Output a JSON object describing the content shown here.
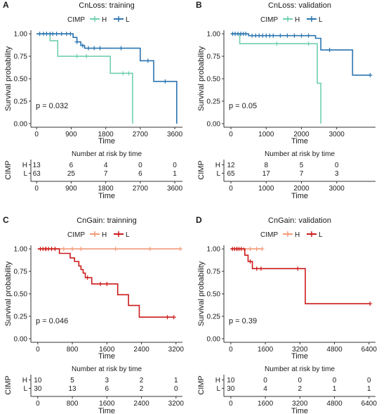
{
  "panels": [
    {
      "letter": "A",
      "title": "CnLoss: training",
      "legend_title": "CIMP",
      "p_value": "p = 0.032",
      "xlabel": "Time",
      "ylabel": "Survival probability",
      "risk_title": "Number at risk by time",
      "risk_ylabel": "CIMP",
      "xlim": [
        -150,
        3800
      ],
      "x_ticks": [
        0,
        900,
        1800,
        2700,
        3600
      ],
      "y_ticks": [
        0.0,
        0.25,
        0.5,
        0.75,
        1.0
      ],
      "series": [
        {
          "name": "H",
          "color": "#6fcfae",
          "steps": [
            [
              0,
              1.0
            ],
            [
              350,
              0.923
            ],
            [
              550,
              0.75
            ],
            [
              1500,
              0.75
            ],
            [
              1920,
              0.56
            ],
            [
              2500,
              0.0
            ]
          ],
          "censor": [
            [
              1050,
              0.75
            ],
            [
              1300,
              0.75
            ],
            [
              2250,
              0.56
            ],
            [
              2400,
              0.56
            ]
          ]
        },
        {
          "name": "L",
          "color": "#2a74b0",
          "steps": [
            [
              0,
              1.0
            ],
            [
              950,
              0.96
            ],
            [
              1050,
              0.91
            ],
            [
              1150,
              0.87
            ],
            [
              1250,
              0.84
            ],
            [
              2700,
              0.7
            ],
            [
              3050,
              0.47
            ],
            [
              3650,
              0.0
            ]
          ],
          "censor": [
            [
              80,
              1.0
            ],
            [
              180,
              1.0
            ],
            [
              260,
              1.0
            ],
            [
              350,
              1.0
            ],
            [
              420,
              1.0
            ],
            [
              520,
              1.0
            ],
            [
              650,
              1.0
            ],
            [
              780,
              1.0
            ],
            [
              880,
              1.0
            ],
            [
              1050,
              0.91
            ],
            [
              1200,
              0.87
            ],
            [
              1350,
              0.84
            ],
            [
              1500,
              0.84
            ],
            [
              1650,
              0.84
            ],
            [
              2200,
              0.84
            ],
            [
              2900,
              0.7
            ],
            [
              3350,
              0.47
            ]
          ]
        }
      ],
      "risk": {
        "times": [
          0,
          900,
          1800,
          2700,
          3600
        ],
        "rows": [
          {
            "group": "H",
            "color": "#6fcfae",
            "values": [
              "13",
              "6",
              "4",
              "0",
              "0"
            ]
          },
          {
            "group": "L",
            "color": "#2a74b0",
            "values": [
              "63",
              "25",
              "7",
              "6",
              "1"
            ]
          }
        ]
      }
    },
    {
      "letter": "B",
      "title": "CnLoss: validation",
      "legend_title": "CIMP",
      "p_value": "p = 0.05",
      "xlabel": "Time",
      "ylabel": "Survival probability",
      "risk_title": "Number at risk by time",
      "risk_ylabel": "CIMP",
      "xlim": [
        -200,
        4100
      ],
      "x_ticks": [
        0,
        1000,
        2000,
        3000
      ],
      "y_ticks": [
        0.0,
        0.25,
        0.5,
        0.75,
        1.0
      ],
      "series": [
        {
          "name": "H",
          "color": "#6fcfae",
          "steps": [
            [
              0,
              1.0
            ],
            [
              250,
              0.89
            ],
            [
              2450,
              0.45
            ],
            [
              2550,
              0.0
            ]
          ],
          "censor": [
            [
              1300,
              0.89
            ],
            [
              2200,
              0.89
            ]
          ]
        },
        {
          "name": "L",
          "color": "#2a74b0",
          "steps": [
            [
              0,
              1.0
            ],
            [
              500,
              0.98
            ],
            [
              2400,
              0.95
            ],
            [
              2550,
              0.82
            ],
            [
              3450,
              0.54
            ],
            [
              3950,
              0.54
            ]
          ],
          "censor": [
            [
              50,
              1.0
            ],
            [
              120,
              1.0
            ],
            [
              200,
              1.0
            ],
            [
              280,
              1.0
            ],
            [
              350,
              1.0
            ],
            [
              420,
              1.0
            ],
            [
              600,
              0.98
            ],
            [
              700,
              0.98
            ],
            [
              800,
              0.98
            ],
            [
              900,
              0.98
            ],
            [
              1000,
              0.98
            ],
            [
              1100,
              0.98
            ],
            [
              1200,
              0.98
            ],
            [
              1400,
              0.98
            ],
            [
              1600,
              0.98
            ],
            [
              1800,
              0.98
            ],
            [
              2000,
              0.98
            ],
            [
              2200,
              0.98
            ],
            [
              2800,
              0.82
            ],
            [
              3950,
              0.54
            ]
          ]
        }
      ],
      "risk": {
        "times": [
          0,
          1000,
          2000,
          3000
        ],
        "rows": [
          {
            "group": "H",
            "color": "#6fcfae",
            "values": [
              "12",
              "8",
              "5",
              "0"
            ]
          },
          {
            "group": "L",
            "color": "#2a74b0",
            "values": [
              "65",
              "17",
              "7",
              "3"
            ]
          }
        ]
      }
    },
    {
      "letter": "C",
      "title": "CnGain: trainning",
      "legend_title": "CIMP",
      "p_value": "p = 0.046",
      "xlabel": "Time",
      "ylabel": "Survival probability",
      "risk_title": "Number at risk by time",
      "risk_ylabel": "CIMP",
      "xlim": [
        -160,
        3350
      ],
      "x_ticks": [
        0,
        800,
        1600,
        2400,
        3200
      ],
      "y_ticks": [
        0.0,
        0.25,
        0.5,
        0.75,
        1.0
      ],
      "series": [
        {
          "name": "H",
          "color": "#f39a78",
          "steps": [
            [
              0,
              1.0
            ],
            [
              3300,
              1.0
            ]
          ],
          "censor": [
            [
              200,
              1.0
            ],
            [
              400,
              1.0
            ],
            [
              600,
              1.0
            ],
            [
              800,
              1.0
            ],
            [
              1000,
              1.0
            ],
            [
              1800,
              1.0
            ],
            [
              2600,
              1.0
            ],
            [
              3300,
              1.0
            ]
          ]
        },
        {
          "name": "L",
          "color": "#cc1a1a",
          "steps": [
            [
              0,
              1.0
            ],
            [
              500,
              0.95
            ],
            [
              750,
              0.9
            ],
            [
              850,
              0.86
            ],
            [
              950,
              0.81
            ],
            [
              1000,
              0.77
            ],
            [
              1050,
              0.73
            ],
            [
              1100,
              0.68
            ],
            [
              1250,
              0.61
            ],
            [
              1850,
              0.49
            ],
            [
              2100,
              0.37
            ],
            [
              2350,
              0.24
            ],
            [
              3150,
              0.24
            ]
          ],
          "censor": [
            [
              60,
              1.0
            ],
            [
              120,
              1.0
            ],
            [
              180,
              1.0
            ],
            [
              250,
              1.0
            ],
            [
              320,
              1.0
            ],
            [
              400,
              1.0
            ],
            [
              1150,
              0.68
            ],
            [
              1450,
              0.61
            ],
            [
              1600,
              0.61
            ],
            [
              3000,
              0.24
            ],
            [
              3150,
              0.24
            ]
          ]
        }
      ],
      "risk": {
        "times": [
          0,
          800,
          1600,
          2400,
          3200
        ],
        "rows": [
          {
            "group": "H",
            "color": "#f39a78",
            "values": [
              "10",
              "5",
              "3",
              "2",
              "1"
            ]
          },
          {
            "group": "L",
            "color": "#cc1a1a",
            "values": [
              "30",
              "13",
              "6",
              "2",
              "0"
            ]
          }
        ]
      }
    },
    {
      "letter": "D",
      "title": "CnGain: validation",
      "legend_title": "CIMP",
      "p_value": "p = 0.39",
      "xlabel": "Time",
      "ylabel": "Survival probability",
      "risk_title": "Number at risk by time",
      "risk_ylabel": "CIMP",
      "xlim": [
        -320,
        6700
      ],
      "x_ticks": [
        0,
        1600,
        3200,
        4800,
        6400
      ],
      "y_ticks": [
        0.0,
        0.25,
        0.5,
        0.75,
        1.0
      ],
      "series": [
        {
          "name": "H",
          "color": "#f39a78",
          "steps": [
            [
              0,
              1.0
            ],
            [
              1450,
              1.0
            ]
          ],
          "censor": [
            [
              300,
              1.0
            ],
            [
              600,
              1.0
            ],
            [
              900,
              1.0
            ],
            [
              1200,
              1.0
            ],
            [
              1450,
              1.0
            ]
          ]
        },
        {
          "name": "L",
          "color": "#cc1a1a",
          "steps": [
            [
              0,
              1.0
            ],
            [
              650,
              0.93
            ],
            [
              800,
              0.86
            ],
            [
              1000,
              0.78
            ],
            [
              3450,
              0.39
            ],
            [
              6450,
              0.39
            ]
          ],
          "censor": [
            [
              80,
              1.0
            ],
            [
              180,
              1.0
            ],
            [
              280,
              1.0
            ],
            [
              380,
              1.0
            ],
            [
              480,
              1.0
            ],
            [
              900,
              0.86
            ],
            [
              1200,
              0.78
            ],
            [
              1400,
              0.78
            ],
            [
              3100,
              0.78
            ],
            [
              6450,
              0.39
            ]
          ]
        }
      ],
      "risk": {
        "times": [
          0,
          1600,
          3200,
          4800,
          6400
        ],
        "rows": [
          {
            "group": "H",
            "color": "#f39a78",
            "values": [
              "10",
              "0",
              "0",
              "0",
              "0"
            ]
          },
          {
            "group": "L",
            "color": "#cc1a1a",
            "values": [
              "30",
              "4",
              "2",
              "1",
              "1"
            ]
          }
        ]
      }
    }
  ]
}
